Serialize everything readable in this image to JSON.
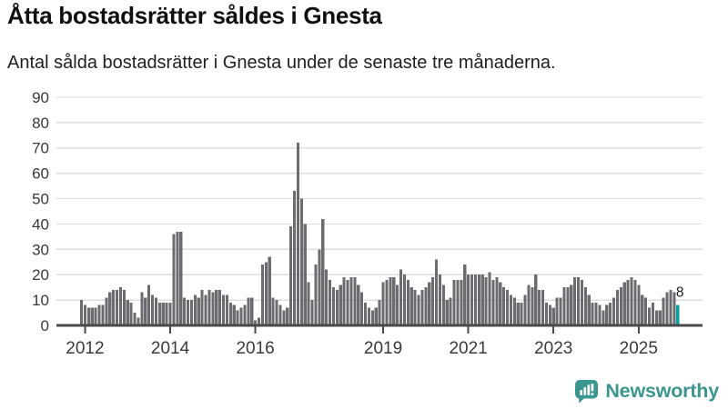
{
  "header": {
    "title": "Åtta bostadsrätter såldes i Gnesta",
    "subtitle": "Antal sålda bostadsrätter i Gnesta under de senaste tre månaderna."
  },
  "chart_data": {
    "type": "bar",
    "title": "Åtta bostadsrätter såldes i Gnesta",
    "subtitle": "Antal sålda bostadsrätter i Gnesta under de senaste tre månaderna.",
    "frequency": "monthly",
    "start_month": "2011-12",
    "values": [
      10,
      8,
      7,
      7,
      7,
      8,
      8,
      11,
      13,
      14,
      14,
      15,
      14,
      10,
      9,
      5,
      3,
      13,
      11,
      16,
      12,
      11,
      9,
      9,
      9,
      9,
      36,
      37,
      37,
      11,
      10,
      10,
      12,
      11,
      14,
      12,
      14,
      13,
      14,
      14,
      12,
      12,
      9,
      8,
      6,
      7,
      8,
      11,
      11,
      2,
      3,
      24,
      25,
      27,
      11,
      10,
      8,
      6,
      7,
      39,
      53,
      72,
      50,
      40,
      17,
      10,
      24,
      30,
      42,
      22,
      18,
      15,
      14,
      16,
      19,
      18,
      19,
      19,
      16,
      13,
      9,
      7,
      6,
      7,
      10,
      17,
      18,
      19,
      19,
      16,
      22,
      20,
      18,
      15,
      14,
      12,
      14,
      15,
      17,
      19,
      26,
      20,
      16,
      10,
      11,
      18,
      18,
      18,
      24,
      20,
      20,
      20,
      20,
      20,
      19,
      21,
      18,
      19,
      17,
      15,
      14,
      12,
      11,
      9,
      9,
      12,
      16,
      15,
      20,
      14,
      14,
      9,
      8,
      7,
      11,
      11,
      15,
      15,
      16,
      19,
      19,
      18,
      15,
      12,
      9,
      9,
      8,
      6,
      8,
      9,
      11,
      14,
      15,
      17,
      18,
      19,
      18,
      16,
      12,
      11,
      7,
      9,
      6,
      6,
      11,
      13,
      14,
      13,
      8
    ],
    "highlight_last": true,
    "last_value_label": "8",
    "ylim": [
      0,
      90
    ],
    "y_ticks": [
      0,
      10,
      20,
      30,
      40,
      50,
      60,
      70,
      80,
      90
    ],
    "x_tick_years": [
      2012,
      2014,
      2016,
      2019,
      2021,
      2023,
      2025
    ],
    "grid": true,
    "legend": "none",
    "colors": {
      "bar": "#6B6B70",
      "highlight": "#00A49D",
      "axis": "#4A4A4A",
      "grid": "#DEDEDE",
      "tick_text": "#3A3A3A",
      "annotation_text": "#222222"
    }
  },
  "footer": {
    "brand": "Newsworthy",
    "brand_color": "#3A968E"
  }
}
